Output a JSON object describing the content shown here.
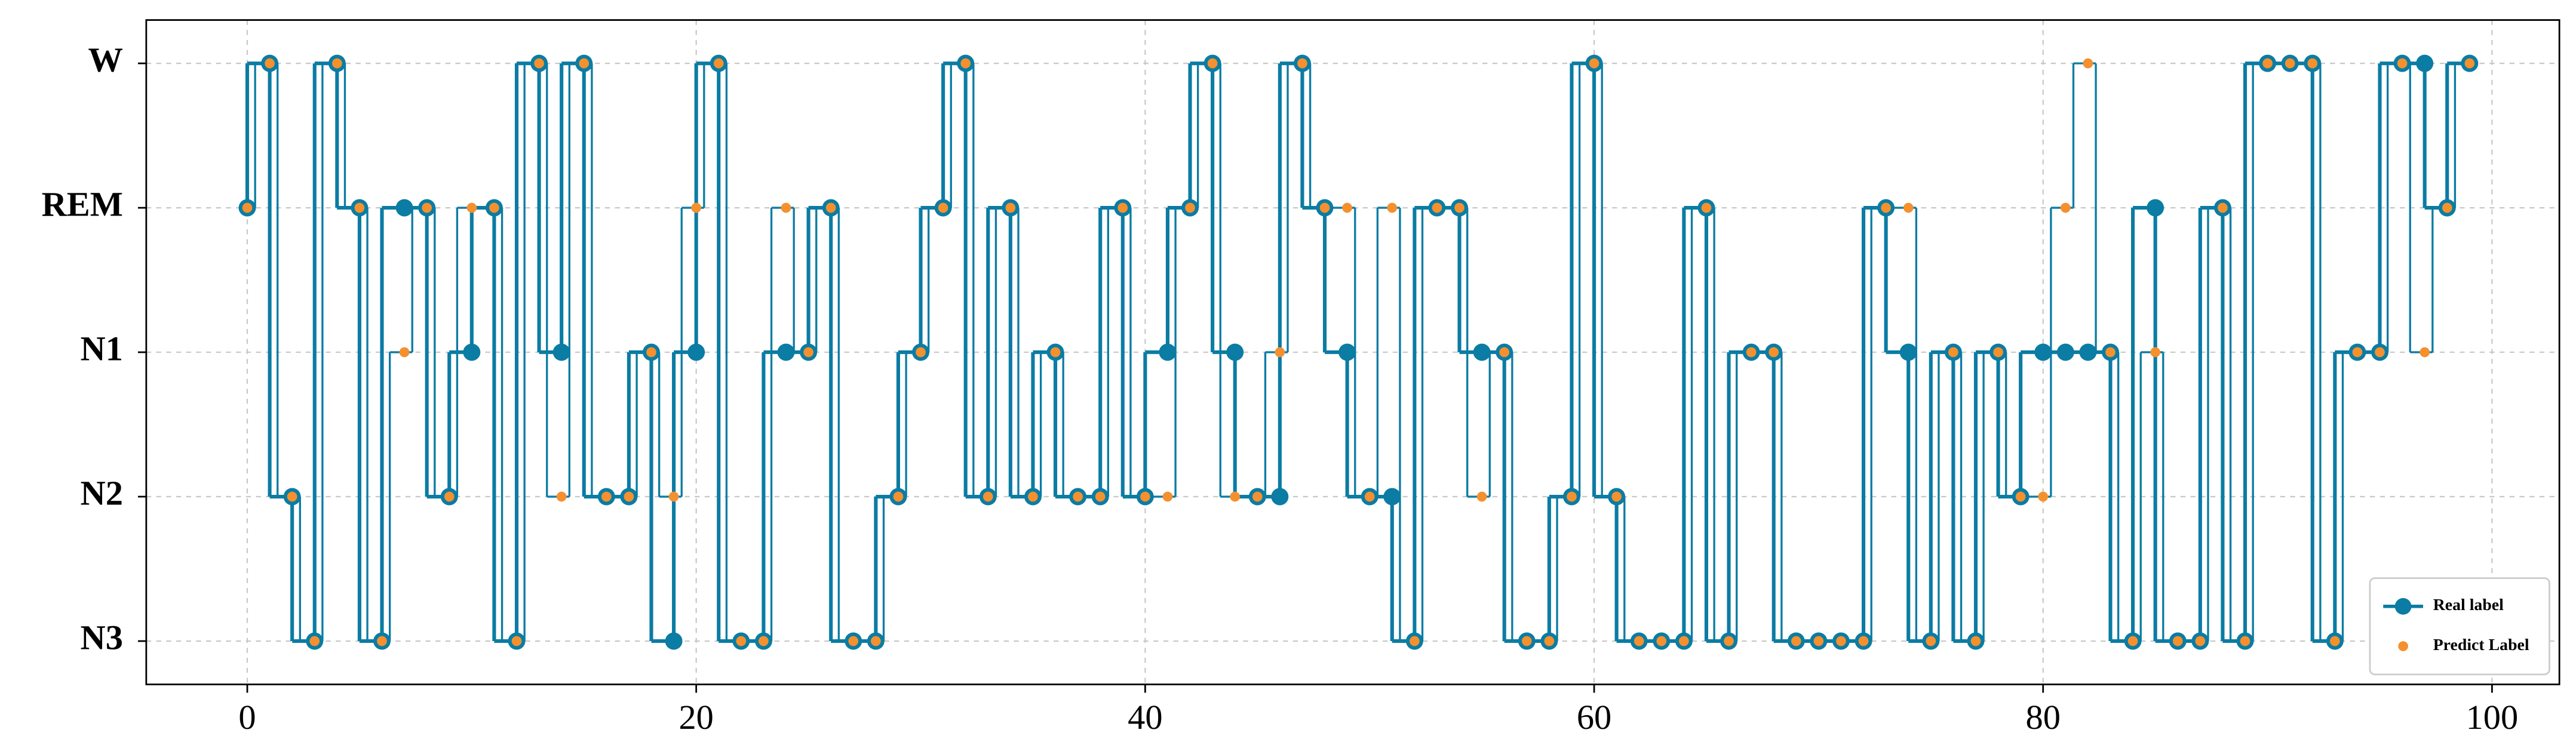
{
  "chart_data": {
    "type": "step",
    "x": [
      0,
      1,
      2,
      3,
      4,
      5,
      6,
      7,
      8,
      9,
      10,
      11,
      12,
      13,
      14,
      15,
      16,
      17,
      18,
      19,
      20,
      21,
      22,
      23,
      24,
      25,
      26,
      27,
      28,
      29,
      30,
      31,
      32,
      33,
      34,
      35,
      36,
      37,
      38,
      39,
      40,
      41,
      42,
      43,
      44,
      45,
      46,
      47,
      48,
      49,
      50,
      51,
      52,
      53,
      54,
      55,
      56,
      57,
      58,
      59,
      60,
      61,
      62,
      63,
      64,
      65,
      66,
      67,
      68,
      69,
      70,
      71,
      72,
      73,
      74,
      75,
      76,
      77,
      78,
      79,
      80,
      81,
      82,
      83,
      84,
      85,
      86,
      87,
      88,
      89,
      90,
      91,
      92,
      93,
      94,
      95,
      96,
      97,
      98,
      99
    ],
    "series": [
      {
        "name": "Real label",
        "color": "#0b7ca3",
        "values": [
          3,
          4,
          1,
          0,
          4,
          3,
          0,
          3,
          3,
          1,
          2,
          3,
          0,
          4,
          2,
          4,
          1,
          1,
          2,
          0,
          2,
          4,
          0,
          0,
          2,
          2,
          3,
          0,
          0,
          1,
          2,
          3,
          4,
          1,
          3,
          1,
          2,
          1,
          1,
          3,
          1,
          2,
          3,
          4,
          2,
          1,
          1,
          4,
          3,
          2,
          1,
          1,
          0,
          3,
          3,
          2,
          2,
          0,
          0,
          1,
          4,
          1,
          0,
          0,
          0,
          3,
          0,
          2,
          2,
          0,
          0,
          0,
          0,
          3,
          2,
          0,
          2,
          0,
          2,
          1,
          2,
          2,
          2,
          2,
          0,
          3,
          0,
          0,
          3,
          0,
          4,
          4,
          4,
          0,
          2,
          2,
          4,
          4,
          3,
          4
        ]
      },
      {
        "name": "Predict Label",
        "color": "#f5902e",
        "values": [
          3,
          4,
          1,
          0,
          4,
          3,
          0,
          2,
          3,
          1,
          3,
          3,
          0,
          4,
          1,
          4,
          1,
          1,
          2,
          1,
          3,
          4,
          0,
          0,
          3,
          2,
          3,
          0,
          0,
          1,
          2,
          3,
          4,
          1,
          3,
          1,
          2,
          1,
          1,
          3,
          1,
          1,
          3,
          4,
          1,
          1,
          2,
          4,
          3,
          3,
          1,
          3,
          0,
          3,
          3,
          1,
          2,
          0,
          0,
          1,
          4,
          1,
          0,
          0,
          0,
          3,
          0,
          2,
          2,
          0,
          0,
          0,
          0,
          3,
          3,
          0,
          2,
          0,
          2,
          1,
          1,
          3,
          4,
          2,
          0,
          2,
          0,
          0,
          3,
          0,
          4,
          4,
          4,
          0,
          2,
          2,
          4,
          2,
          3,
          4
        ]
      }
    ],
    "xlim": [
      -4.5,
      103
    ],
    "xticks": [
      0,
      20,
      40,
      60,
      80,
      100
    ],
    "ylim": [
      -0.3,
      4.3
    ],
    "yticks": [
      {
        "value": 0,
        "label": "N3"
      },
      {
        "value": 1,
        "label": "N2"
      },
      {
        "value": 2,
        "label": "N1"
      },
      {
        "value": 3,
        "label": "REM"
      },
      {
        "value": 4,
        "label": "W"
      }
    ],
    "grid": true,
    "legend": "lower right"
  }
}
